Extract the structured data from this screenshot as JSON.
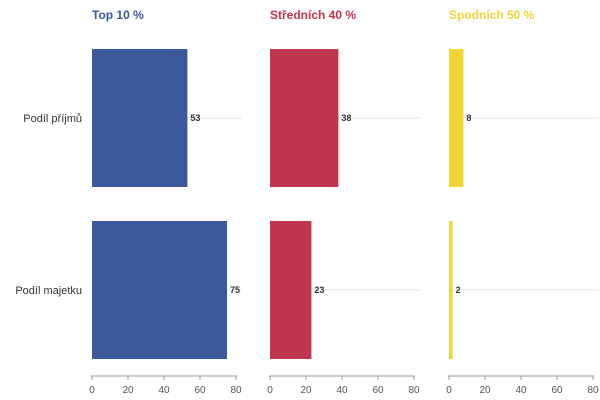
{
  "chart_data": {
    "type": "bar",
    "orientation": "horizontal",
    "categories": [
      "Podíl příjmů",
      "Podíl majetku"
    ],
    "series": [
      {
        "name": "Top 10 %",
        "values": [
          53,
          75
        ],
        "color": "#3b5998"
      },
      {
        "name": "Středních 40 %",
        "values": [
          38,
          23
        ],
        "color": "#c0354f"
      },
      {
        "name": "Spodních 50 %",
        "values": [
          8,
          2
        ],
        "color": "#f0d43a"
      }
    ],
    "xlim": [
      0,
      80
    ],
    "xticks": [
      0,
      20,
      40,
      60,
      80
    ],
    "grid": true,
    "layout": "small-multiples"
  }
}
